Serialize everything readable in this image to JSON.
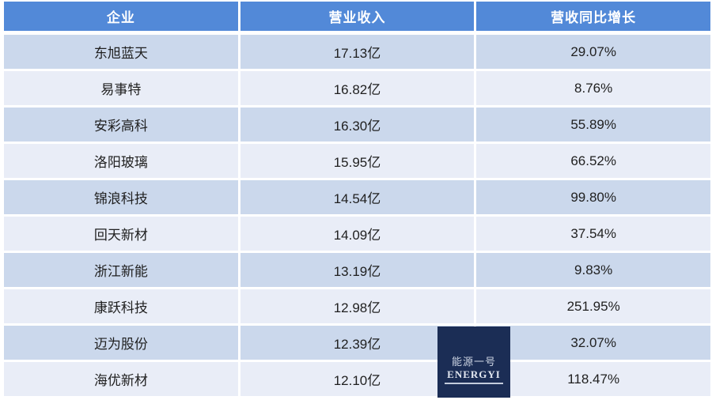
{
  "chart_data": {
    "type": "table",
    "columns": [
      "企业",
      "营业收入",
      "营收同比增长"
    ],
    "rows": [
      [
        "东旭蓝天",
        "17.13亿",
        "29.07%"
      ],
      [
        "易事特",
        "16.82亿",
        "8.76%"
      ],
      [
        "安彩高科",
        "16.30亿",
        "55.89%"
      ],
      [
        "洛阳玻璃",
        "15.95亿",
        "66.52%"
      ],
      [
        "锦浪科技",
        "14.54亿",
        "99.80%"
      ],
      [
        "回天新材",
        "14.09亿",
        "37.54%"
      ],
      [
        "浙江新能",
        "13.19亿",
        "9.83%"
      ],
      [
        "康跃科技",
        "12.98亿",
        "251.95%"
      ],
      [
        "迈为股份",
        "12.39亿",
        "32.07%"
      ],
      [
        "海优新材",
        "12.10亿",
        "118.47%"
      ]
    ],
    "revenue_values_yi": [
      17.13,
      16.82,
      16.3,
      15.95,
      14.54,
      14.09,
      13.19,
      12.98,
      12.39,
      12.1
    ],
    "growth_percent": [
      29.07,
      8.76,
      55.89,
      66.52,
      99.8,
      37.54,
      9.83,
      251.95,
      32.07,
      118.47
    ],
    "title": "",
    "legend": "none",
    "grid": "off"
  },
  "watermark": {
    "name_cn": "能源一号",
    "name_en": "ENERGYI"
  },
  "colors": {
    "header_bg": "#5289d8",
    "header_text": "#ffffff",
    "row_alt_dark": "#cbd8ec",
    "row_alt_light": "#e9edf7",
    "body_text": "#1f1f1f",
    "logo_bg": "#1b2d55",
    "background": "#ffffff"
  }
}
